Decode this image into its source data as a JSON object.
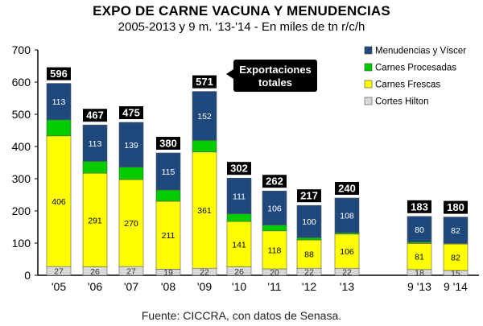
{
  "chart_data": {
    "type": "bar",
    "stacked": true,
    "title": "EXPO DE CARNE VACUNA Y MENUDENCIAS",
    "subtitle": "2005-2013 y 9 m. '13-'14 - En miles de tn r/c/h",
    "xlabel": "",
    "ylabel": "",
    "ylim": [
      0,
      700
    ],
    "yticks": [
      0,
      100,
      200,
      300,
      400,
      500,
      600,
      700
    ],
    "grid": false,
    "legend_position": "top-right",
    "categories": [
      "'05",
      "'06",
      "'07",
      "'08",
      "'09",
      "'10",
      "'11",
      "'12",
      "'13",
      "9 '13",
      "9 '14"
    ],
    "series": [
      {
        "name": "Cortes Hilton",
        "color": "#d9d9d9",
        "values": [
          27,
          26,
          27,
          19,
          22,
          26,
          20,
          22,
          22,
          18,
          15
        ]
      },
      {
        "name": "Carnes Frescas",
        "color": "#ffff00",
        "values": [
          406,
          291,
          270,
          211,
          361,
          141,
          118,
          88,
          106,
          81,
          82
        ]
      },
      {
        "name": "Carnes Procesadas",
        "color": "#00cc00",
        "values": [
          50,
          37,
          39,
          35,
          36,
          24,
          18,
          7,
          4,
          4,
          2
        ]
      },
      {
        "name": "Menudencias y Víscer",
        "color": "#1f497d",
        "values": [
          113,
          113,
          139,
          115,
          152,
          111,
          106,
          100,
          108,
          80,
          82
        ]
      }
    ],
    "totals": [
      596,
      467,
      475,
      380,
      571,
      302,
      262,
      217,
      240,
      183,
      180
    ],
    "segment_labels": {
      "Cortes Hilton": [
        "27",
        "26",
        "27",
        "19",
        "22",
        "26",
        "20",
        "22",
        "22",
        "18",
        "15"
      ],
      "Carnes Frescas": [
        "406",
        "291",
        "270",
        "211",
        "361",
        "141",
        "118",
        "88",
        "106",
        "81",
        "82"
      ],
      "Menudencias y Víscer": [
        "113",
        "113",
        "139",
        "115",
        "152",
        "111",
        "106",
        "100",
        "108",
        "80",
        "82"
      ]
    },
    "annotation": {
      "text": [
        "Exportaciones",
        "totales"
      ],
      "target_index": 4
    }
  },
  "source": "Fuente: CICCRA, con datos de Senasa."
}
